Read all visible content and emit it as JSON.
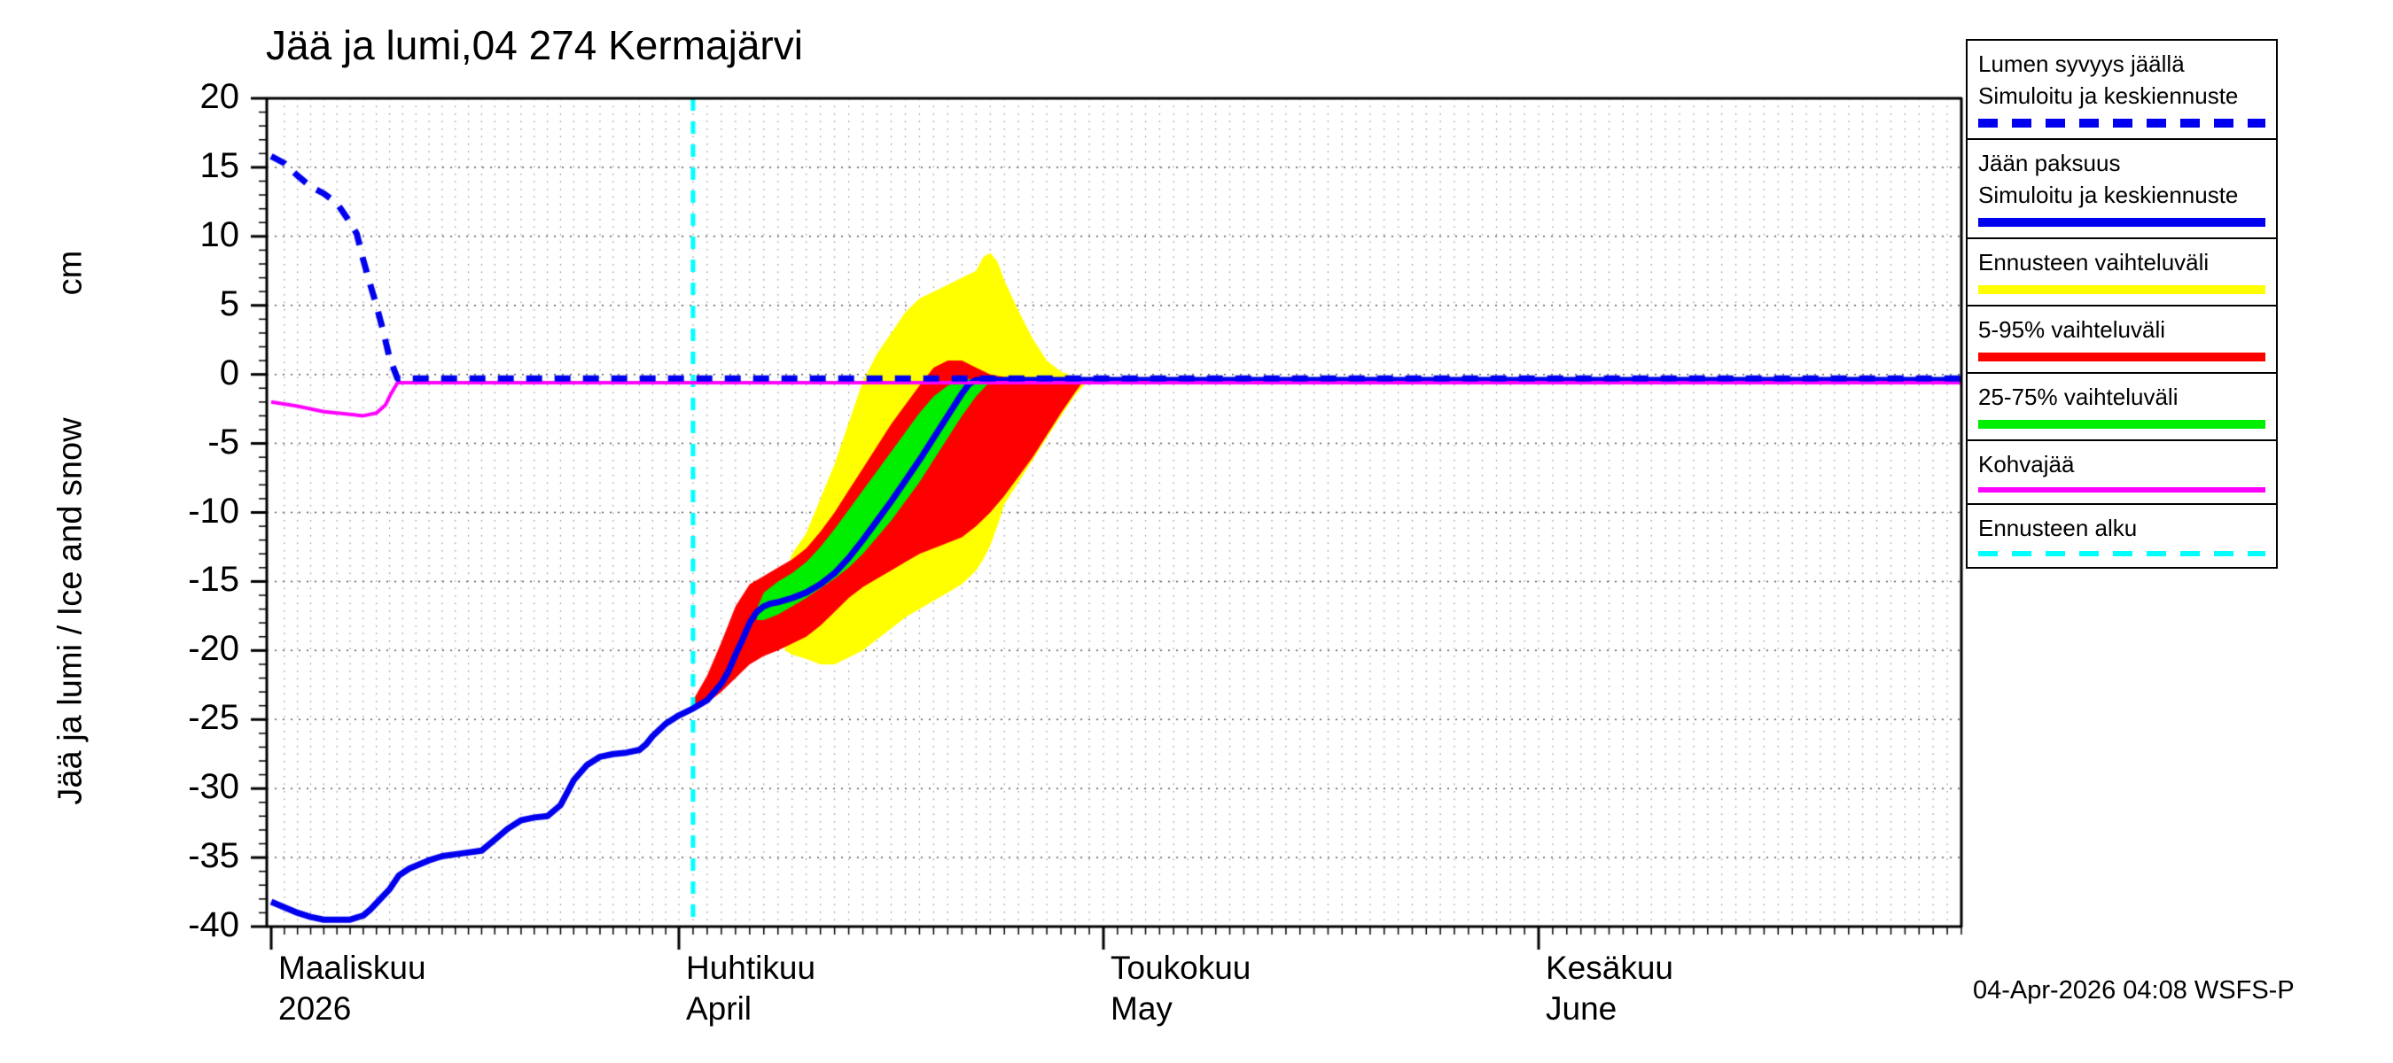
{
  "footer": {
    "timestamp": "04-Apr-2026 04:08 WSFS-P"
  },
  "colors": {
    "line_blue": "#0000ee",
    "band_yellow": "#ffff00",
    "band_red": "#ff0000",
    "band_green": "#00ee00",
    "line_magenta": "#ff00ff",
    "forecast_cyan": "#00ffff",
    "grid": "#555555",
    "grid_vertical": "#888888",
    "axis": "#000000",
    "background": "#ffffff"
  },
  "legend": {
    "items": [
      {
        "lines": [
          "Lumen syvyys jäällä",
          "Simuloitu ja keskiennuste"
        ],
        "sample": "dashed",
        "color": "#0000ee",
        "thick": true
      },
      {
        "lines": [
          "Jään paksuus",
          "Simuloitu ja keskiennuste"
        ],
        "sample": "solid",
        "color": "#0000ee",
        "thick": true
      },
      {
        "lines": [
          "Ennusteen vaihteluväli"
        ],
        "sample": "solid",
        "color": "#ffff00",
        "thick": true
      },
      {
        "lines": [
          "5-95% vaihteluväli"
        ],
        "sample": "solid",
        "color": "#ff0000",
        "thick": true
      },
      {
        "lines": [
          "25-75% vaihteluväli"
        ],
        "sample": "solid",
        "color": "#00ee00",
        "thick": true
      },
      {
        "lines": [
          "Kohvajää"
        ],
        "sample": "solid",
        "color": "#ff00ff",
        "thick": false
      },
      {
        "lines": [
          "Ennusteen alku"
        ],
        "sample": "dashed",
        "color": "#00ffff",
        "thick": false
      }
    ]
  },
  "chart_data": {
    "type": "line",
    "title": "Jää ja lumi,04 274 Kermajärvi",
    "ylabel": "Jää ja lumi / Ice and snow",
    "ylabel_unit": "cm",
    "ylim": [
      -40,
      20
    ],
    "ytick_step": 5,
    "xlim_days": [
      0,
      122
    ],
    "grid": true,
    "legend_position": "right",
    "forecast_start_day": 32,
    "months": [
      {
        "day": 0,
        "label": "Maaliskuu",
        "sublabel": "2026"
      },
      {
        "day": 31,
        "label": "Huhtikuu",
        "sublabel": "April"
      },
      {
        "day": 61,
        "label": "Toukokuu",
        "sublabel": "May"
      },
      {
        "day": 92,
        "label": "Kesäkuu",
        "sublabel": "June"
      }
    ],
    "bands": [
      {
        "name": "Ennusteen vaihteluväli",
        "color": "#ffff00",
        "points": [
          [
            38.5,
            -20.0,
            -14.5
          ],
          [
            39,
            -20.3,
            -13.0
          ],
          [
            40,
            -20.6,
            -11.5
          ],
          [
            41,
            -21.0,
            -9.0
          ],
          [
            42,
            -21.0,
            -6.5
          ],
          [
            43,
            -20.5,
            -3.5
          ],
          [
            44,
            -20.0,
            -0.5
          ],
          [
            45,
            -19.2,
            1.5
          ],
          [
            46,
            -18.4,
            3.0
          ],
          [
            47,
            -17.6,
            4.5
          ],
          [
            48,
            -17.0,
            5.5
          ],
          [
            49,
            -16.4,
            6.0
          ],
          [
            50,
            -15.8,
            6.5
          ],
          [
            51,
            -15.2,
            7.0
          ],
          [
            52,
            -14.2,
            7.5
          ],
          [
            52.5,
            -13.4,
            8.5
          ],
          [
            53,
            -12.4,
            8.8
          ],
          [
            53.5,
            -11.0,
            8.2
          ],
          [
            54,
            -9.4,
            6.8
          ],
          [
            55,
            -7.8,
            4.6
          ],
          [
            56,
            -6.2,
            2.6
          ],
          [
            57,
            -4.6,
            1.0
          ],
          [
            58,
            -3.0,
            0.2
          ],
          [
            59,
            -1.5,
            -0.2
          ],
          [
            59.8,
            -0.6,
            -0.3
          ]
        ]
      },
      {
        "name": "5-95% vaihteluväli",
        "color": "#ff0000",
        "points": [
          [
            32,
            -24.4,
            -23.6
          ],
          [
            33,
            -23.8,
            -21.8
          ],
          [
            34,
            -23.0,
            -19.4
          ],
          [
            35,
            -22.0,
            -16.8
          ],
          [
            36,
            -21.0,
            -15.2
          ],
          [
            37,
            -20.4,
            -14.6
          ],
          [
            38,
            -20.0,
            -14.0
          ],
          [
            39,
            -19.5,
            -13.4
          ],
          [
            40,
            -19.0,
            -12.6
          ],
          [
            41,
            -18.2,
            -11.4
          ],
          [
            42,
            -17.2,
            -10.0
          ],
          [
            43,
            -16.2,
            -8.4
          ],
          [
            44,
            -15.4,
            -6.8
          ],
          [
            45,
            -14.8,
            -5.2
          ],
          [
            46,
            -14.2,
            -3.6
          ],
          [
            47,
            -13.6,
            -2.2
          ],
          [
            48,
            -13.0,
            -0.8
          ],
          [
            49,
            -12.6,
            0.5
          ],
          [
            50,
            -12.2,
            1.0
          ],
          [
            51,
            -11.8,
            1.0
          ],
          [
            52,
            -11.0,
            0.5
          ],
          [
            53,
            -10.0,
            0.0
          ],
          [
            54,
            -8.8,
            -0.2
          ],
          [
            55,
            -7.4,
            -0.2
          ],
          [
            56,
            -6.0,
            -0.3
          ],
          [
            57,
            -4.4,
            -0.3
          ],
          [
            58,
            -2.8,
            -0.3
          ],
          [
            59,
            -1.3,
            -0.3
          ],
          [
            59.5,
            -0.6,
            -0.3
          ]
        ]
      },
      {
        "name": "25-75% vaihteluväli",
        "color": "#00ee00",
        "points": [
          [
            36.5,
            -17.8,
            -17.0
          ],
          [
            37,
            -17.8,
            -15.8
          ],
          [
            38,
            -17.4,
            -15.0
          ],
          [
            39,
            -16.8,
            -14.4
          ],
          [
            40,
            -16.2,
            -13.6
          ],
          [
            41,
            -15.5,
            -12.5
          ],
          [
            42,
            -14.8,
            -11.2
          ],
          [
            43,
            -14.0,
            -9.8
          ],
          [
            44,
            -13.0,
            -8.4
          ],
          [
            45,
            -11.8,
            -7.0
          ],
          [
            46,
            -10.6,
            -5.6
          ],
          [
            47,
            -9.2,
            -4.2
          ],
          [
            48,
            -7.8,
            -2.8
          ],
          [
            49,
            -6.2,
            -1.6
          ],
          [
            50,
            -4.6,
            -0.8
          ],
          [
            51,
            -3.0,
            -0.4
          ],
          [
            52,
            -1.6,
            -0.3
          ],
          [
            53,
            -0.5,
            -0.3
          ]
        ]
      }
    ],
    "series": [
      {
        "name": "Lumen syvyys jäällä (simuloitu ja keskiennuste)",
        "style": "dashed",
        "color": "#0000ee",
        "width": 7,
        "points": [
          [
            0,
            15.8
          ],
          [
            1,
            15.3
          ],
          [
            2,
            14.4
          ],
          [
            3,
            13.6
          ],
          [
            4,
            13.1
          ],
          [
            5,
            12.4
          ],
          [
            6,
            11.0
          ],
          [
            6.5,
            10.2
          ],
          [
            7,
            8.3
          ],
          [
            7.5,
            6.6
          ],
          [
            8,
            5.0
          ],
          [
            8.5,
            3.2
          ],
          [
            9,
            1.2
          ],
          [
            9.6,
            -0.3
          ],
          [
            122,
            -0.3
          ]
        ]
      },
      {
        "name": "Jään paksuus (simuloitu ja keskiennuste)",
        "style": "solid",
        "color": "#0000ee",
        "width": 7,
        "points": [
          [
            0,
            -38.2
          ],
          [
            1,
            -38.6
          ],
          [
            2,
            -39.0
          ],
          [
            3,
            -39.3
          ],
          [
            4,
            -39.5
          ],
          [
            5,
            -39.5
          ],
          [
            6,
            -39.5
          ],
          [
            7,
            -39.2
          ],
          [
            7.5,
            -38.8
          ],
          [
            8,
            -38.3
          ],
          [
            9,
            -37.3
          ],
          [
            9.7,
            -36.3
          ],
          [
            10.5,
            -35.8
          ],
          [
            12,
            -35.2
          ],
          [
            13,
            -34.9
          ],
          [
            14.5,
            -34.7
          ],
          [
            16,
            -34.5
          ],
          [
            17,
            -33.7
          ],
          [
            18,
            -32.9
          ],
          [
            19,
            -32.3
          ],
          [
            20,
            -32.1
          ],
          [
            21,
            -32.0
          ],
          [
            22,
            -31.2
          ],
          [
            22.5,
            -30.3
          ],
          [
            23,
            -29.4
          ],
          [
            24,
            -28.3
          ],
          [
            25,
            -27.7
          ],
          [
            26,
            -27.5
          ],
          [
            27,
            -27.4
          ],
          [
            28,
            -27.2
          ],
          [
            28.5,
            -26.8
          ],
          [
            29,
            -26.2
          ],
          [
            30,
            -25.3
          ],
          [
            31,
            -24.7
          ],
          [
            32,
            -24.2
          ],
          [
            33,
            -23.6
          ],
          [
            34,
            -22.4
          ],
          [
            34.5,
            -21.5
          ],
          [
            35,
            -20.3
          ],
          [
            35.5,
            -19.2
          ],
          [
            36,
            -18.0
          ],
          [
            36.5,
            -17.2
          ],
          [
            37,
            -16.8
          ],
          [
            37.5,
            -16.6
          ],
          [
            38,
            -16.5
          ],
          [
            39,
            -16.2
          ],
          [
            40,
            -15.8
          ],
          [
            41,
            -15.2
          ],
          [
            42,
            -14.4
          ],
          [
            43,
            -13.3
          ],
          [
            44,
            -12.0
          ],
          [
            45,
            -10.6
          ],
          [
            46,
            -9.2
          ],
          [
            47,
            -7.7
          ],
          [
            48,
            -6.2
          ],
          [
            49,
            -4.6
          ],
          [
            50,
            -3.0
          ],
          [
            50.5,
            -2.2
          ],
          [
            51,
            -1.4
          ],
          [
            51.5,
            -0.7
          ],
          [
            52,
            -0.4
          ],
          [
            122,
            -0.4
          ]
        ]
      },
      {
        "name": "Kohvajää",
        "style": "solid",
        "color": "#ff00ff",
        "width": 4,
        "points": [
          [
            0,
            -2.0
          ],
          [
            2,
            -2.3
          ],
          [
            4,
            -2.7
          ],
          [
            6,
            -2.9
          ],
          [
            7,
            -3.0
          ],
          [
            8,
            -2.8
          ],
          [
            8.7,
            -2.2
          ],
          [
            9,
            -1.6
          ],
          [
            9.6,
            -0.6
          ],
          [
            122,
            -0.6
          ]
        ]
      }
    ]
  }
}
